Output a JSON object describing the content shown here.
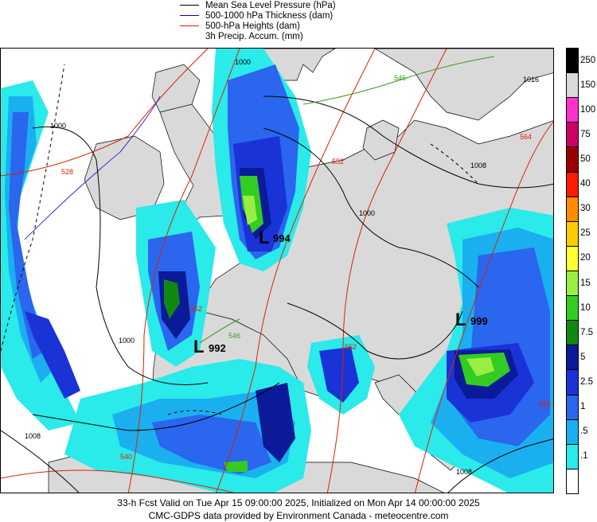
{
  "legend": [
    {
      "label": "Mean Sea Level Pressure (hPa)",
      "color": "#000000"
    },
    {
      "label": "500-1000 hPa Thickness (dam)",
      "color": "#0000cc"
    },
    {
      "label": "500-hPa Heights (dam)",
      "color": "#dd2200"
    },
    {
      "label": "3h Precip. Accum. (mm)",
      "color": null
    }
  ],
  "colorbar": {
    "levels": [
      {
        "label": "250",
        "color": "#000000"
      },
      {
        "label": "150",
        "color": "#d9d9d9"
      },
      {
        "label": "100",
        "color": "#ff33cc"
      },
      {
        "label": "75",
        "color": "#cc0066"
      },
      {
        "label": "50",
        "color": "#990000"
      },
      {
        "label": "40",
        "color": "#ff1a00"
      },
      {
        "label": "30",
        "color": "#ff8c00"
      },
      {
        "label": "25",
        "color": "#ffcc00"
      },
      {
        "label": "20",
        "color": "#ffff33"
      },
      {
        "label": "15",
        "color": "#99ee44"
      },
      {
        "label": "10",
        "color": "#33cc22"
      },
      {
        "label": "7.5",
        "color": "#118811"
      },
      {
        "label": "5",
        "color": "#0a1a99"
      },
      {
        "label": "2.5",
        "color": "#1a33d6"
      },
      {
        "label": "1",
        "color": "#2a66ee"
      },
      {
        "label": ".5",
        "color": "#1ab0f0"
      },
      {
        "label": ".1",
        "color": "#2aeaea"
      },
      {
        "label": "",
        "color": "#ffffff"
      }
    ]
  },
  "map": {
    "colors": {
      "sea": "#ffffff",
      "land": "#d9d9d9",
      "isobar": "#000000",
      "height": "#dd2200",
      "thickness_546": "#3a9a1a",
      "precip_light": "#2aeaea",
      "precip_mid": "#1ab0f0",
      "precip_blue": "#2a66ee",
      "precip_dark": "#1a33d6",
      "precip_navy": "#0a1a99",
      "precip_green": "#33cc22",
      "precip_lime": "#99ee44"
    },
    "lows": [
      {
        "symbol": "L",
        "value": "994"
      },
      {
        "symbol": "L",
        "value": "992"
      },
      {
        "symbol": "L",
        "value": "999"
      }
    ],
    "isobar_labels": [
      "1000",
      "1000",
      "1000",
      "1000",
      "1008",
      "1008",
      "1008",
      "1016"
    ],
    "height_labels": [
      "528",
      "552",
      "552",
      "564",
      "540",
      "552",
      "558"
    ],
    "thickness_labels": [
      "546",
      "546"
    ]
  },
  "footer": {
    "line1": "33-h Fcst Valid on Tue Apr 15 09:00:00 2025, Initialized on Mon Apr 14 00:00:00 2025",
    "line2": "CMC-GDPS data provided by Environment Canada - meteocentre.com"
  }
}
